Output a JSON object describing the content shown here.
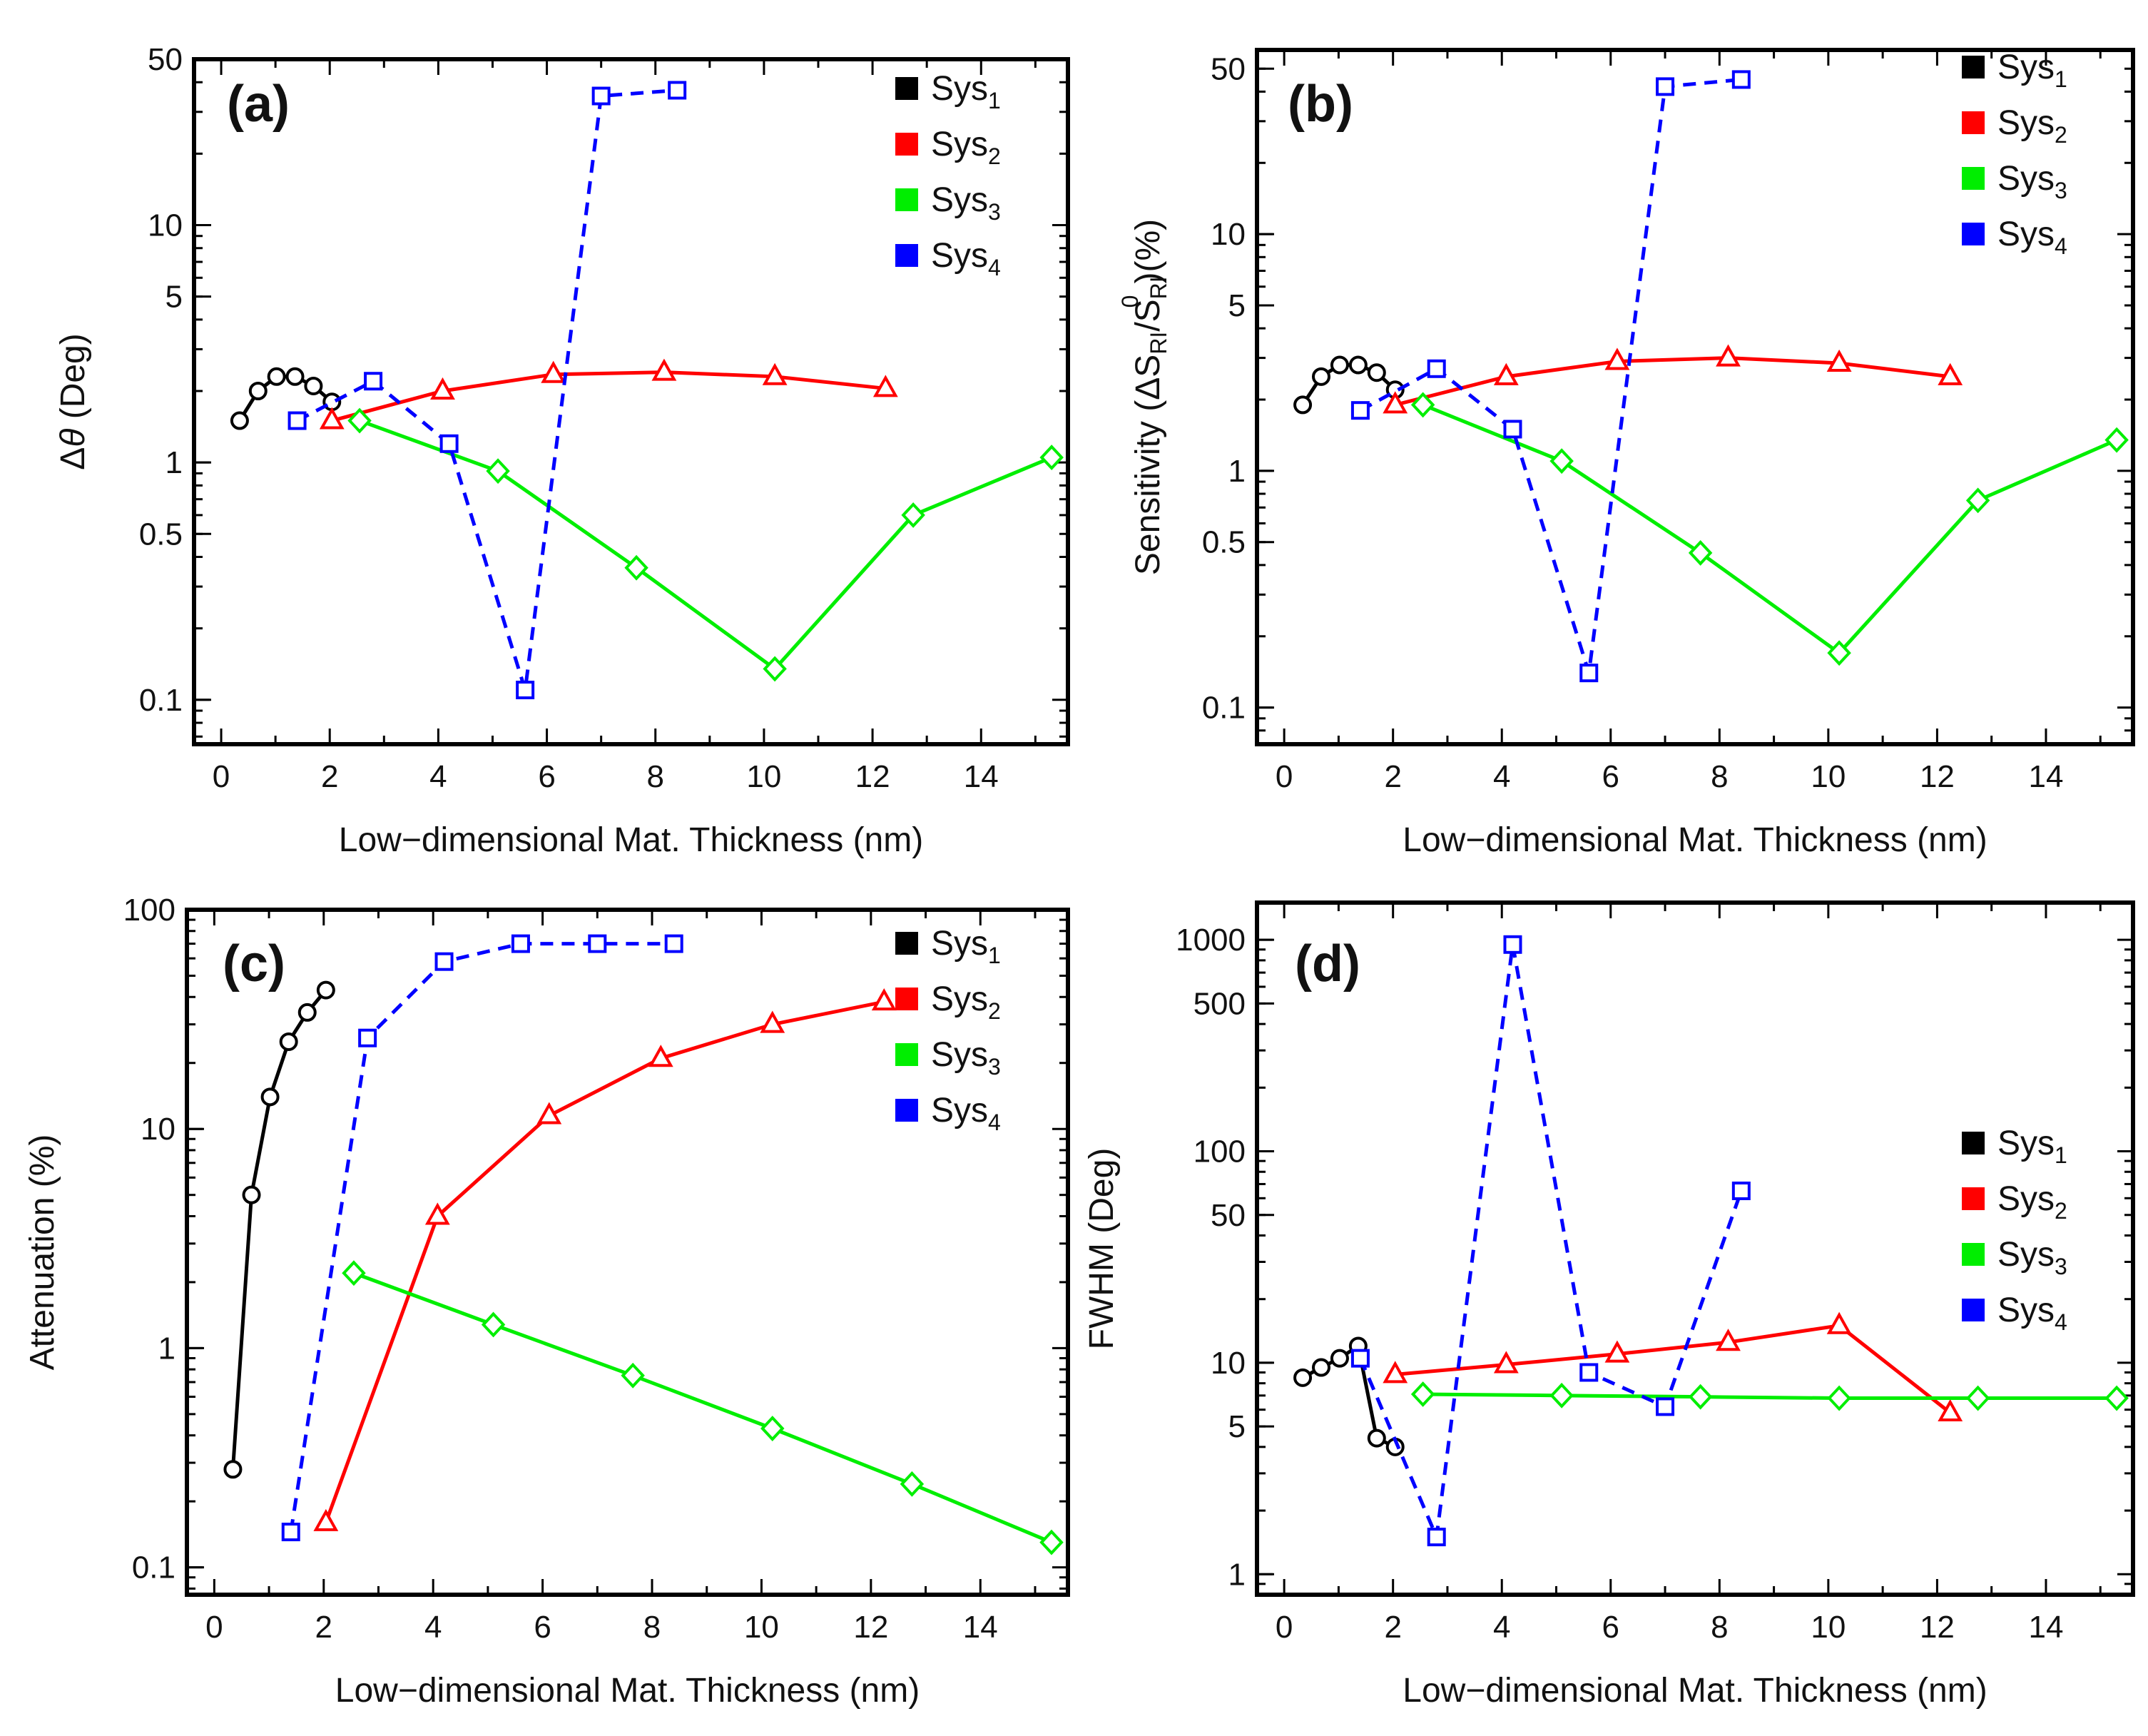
{
  "colors": {
    "sys1": "#000000",
    "sys2": "#ff0000",
    "sys3": "#00ee00",
    "sys4": "#0000ff"
  },
  "legend": [
    {
      "base": "Sys",
      "sub": "1",
      "color": "#000000"
    },
    {
      "base": "Sys",
      "sub": "2",
      "color": "#ff0000"
    },
    {
      "base": "Sys",
      "sub": "3",
      "color": "#00ee00"
    },
    {
      "base": "Sys",
      "sub": "4",
      "color": "#0000ff"
    }
  ],
  "chart_data": [
    {
      "type": "line",
      "panel_label": "(a)",
      "xlabel": "Low−dimensional Mat. Thickness (nm)",
      "ylabel_parts": [
        "Δ",
        "θ",
        " (Deg)"
      ],
      "yscale": "log",
      "xlim": [
        -0.5,
        15.6
      ],
      "ylim": [
        0.065,
        50
      ],
      "xticks": [
        "0",
        "2",
        "4",
        "6",
        "8",
        "10",
        "12",
        "14"
      ],
      "yticks": [
        0.1,
        0.5,
        1,
        5,
        10,
        50
      ],
      "ytick_labels": [
        "0.1",
        "0.5",
        "1",
        "5",
        "10",
        "50"
      ],
      "series": [
        {
          "name": "Sys1",
          "marker": "circle",
          "dash": false,
          "x": [
            0.34,
            0.68,
            1.02,
            1.36,
            1.7,
            2.04
          ],
          "y": [
            1.5,
            2.0,
            2.3,
            2.3,
            2.1,
            1.8
          ]
        },
        {
          "name": "Sys2",
          "marker": "triangle",
          "dash": false,
          "x": [
            2.04,
            4.08,
            6.12,
            8.16,
            10.2,
            12.24
          ],
          "y": [
            1.5,
            2.0,
            2.35,
            2.4,
            2.3,
            2.05
          ]
        },
        {
          "name": "Sys3",
          "marker": "diamond",
          "dash": false,
          "x": [
            2.55,
            5.1,
            7.65,
            10.2,
            12.75,
            15.3
          ],
          "y": [
            1.5,
            0.92,
            0.36,
            0.135,
            0.6,
            1.05
          ]
        },
        {
          "name": "Sys4",
          "marker": "square",
          "dash": true,
          "x": [
            1.4,
            2.8,
            4.2,
            5.6,
            7.0,
            8.4
          ],
          "y": [
            1.5,
            2.2,
            1.2,
            0.11,
            35,
            37
          ]
        }
      ]
    },
    {
      "type": "line",
      "panel_label": "(b)",
      "xlabel": "Low−dimensional Mat. Thickness (nm)",
      "ylabel_parts": [
        "Sensitivity (",
        "ΔS",
        "RI",
        "/S",
        "RI",
        "0",
        ")(%)"
      ],
      "yscale": "log",
      "xlim": [
        -0.5,
        15.6
      ],
      "ylim": [
        0.07,
        60
      ],
      "xticks": [
        "0",
        "2",
        "4",
        "6",
        "8",
        "10",
        "12",
        "14"
      ],
      "yticks": [
        0.1,
        0.5,
        1,
        5,
        10,
        50
      ],
      "ytick_labels": [
        "0.1",
        "0.5",
        "1",
        "5",
        "10",
        "50"
      ],
      "series": [
        {
          "name": "Sys1",
          "marker": "circle",
          "dash": false,
          "x": [
            0.34,
            0.68,
            1.02,
            1.36,
            1.7,
            2.04
          ],
          "y": [
            1.9,
            2.5,
            2.8,
            2.8,
            2.6,
            2.2
          ]
        },
        {
          "name": "Sys2",
          "marker": "triangle",
          "dash": false,
          "x": [
            2.04,
            4.08,
            6.12,
            8.16,
            10.2,
            12.24
          ],
          "y": [
            1.9,
            2.5,
            2.9,
            3.0,
            2.85,
            2.5
          ]
        },
        {
          "name": "Sys3",
          "marker": "diamond",
          "dash": false,
          "x": [
            2.55,
            5.1,
            7.65,
            10.2,
            12.75,
            15.3
          ],
          "y": [
            1.9,
            1.1,
            0.45,
            0.17,
            0.75,
            1.35
          ]
        },
        {
          "name": "Sys4",
          "marker": "square",
          "dash": true,
          "x": [
            1.4,
            2.8,
            4.2,
            5.6,
            7.0,
            8.4
          ],
          "y": [
            1.8,
            2.7,
            1.5,
            0.14,
            42,
            45
          ]
        }
      ]
    },
    {
      "type": "line",
      "panel_label": "(c)",
      "xlabel": "Low−dimensional Mat. Thickness (nm)",
      "ylabel_parts": [
        "Attenuation (%)"
      ],
      "yscale": "log",
      "xlim": [
        -0.5,
        15.6
      ],
      "ylim": [
        0.075,
        100
      ],
      "xticks": [
        "0",
        "2",
        "4",
        "6",
        "8",
        "10",
        "12",
        "14"
      ],
      "yticks": [
        0.1,
        1,
        10,
        100
      ],
      "ytick_labels": [
        "0.1",
        "1",
        "10",
        "100"
      ],
      "series": [
        {
          "name": "Sys1",
          "marker": "circle",
          "dash": false,
          "x": [
            0.34,
            0.68,
            1.02,
            1.36,
            1.7,
            2.04
          ],
          "y": [
            0.28,
            5.0,
            14,
            25,
            34,
            43
          ]
        },
        {
          "name": "Sys2",
          "marker": "triangle",
          "dash": false,
          "x": [
            2.04,
            4.08,
            6.12,
            8.16,
            10.2,
            12.24
          ],
          "y": [
            0.16,
            4.0,
            11.5,
            21,
            30,
            38
          ]
        },
        {
          "name": "Sys3",
          "marker": "diamond",
          "dash": false,
          "x": [
            2.55,
            5.1,
            7.65,
            10.2,
            12.75,
            15.3
          ],
          "y": [
            2.2,
            1.28,
            0.75,
            0.43,
            0.24,
            0.13
          ]
        },
        {
          "name": "Sys4",
          "marker": "square",
          "dash": true,
          "x": [
            1.4,
            2.8,
            4.2,
            5.6,
            7.0,
            8.4
          ],
          "y": [
            0.145,
            26,
            58,
            70,
            70,
            70
          ]
        }
      ]
    },
    {
      "type": "line",
      "panel_label": "(d)",
      "xlabel": "Low−dimensional Mat. Thickness (nm)",
      "ylabel_parts": [
        "FWHM (Deg)"
      ],
      "yscale": "log",
      "xlim": [
        -0.5,
        15.6
      ],
      "ylim": [
        0.8,
        1500
      ],
      "xticks": [
        "0",
        "2",
        "4",
        "6",
        "8",
        "10",
        "12",
        "14"
      ],
      "yticks": [
        1,
        5,
        10,
        50,
        100,
        500,
        1000
      ],
      "ytick_labels": [
        "1",
        "5",
        "10",
        "50",
        "100",
        "500",
        "1000"
      ],
      "series": [
        {
          "name": "Sys1",
          "marker": "circle",
          "dash": false,
          "x": [
            0.34,
            0.68,
            1.02,
            1.36,
            1.7,
            2.04
          ],
          "y": [
            8.5,
            9.5,
            10.5,
            12,
            4.4,
            4.0
          ]
        },
        {
          "name": "Sys2",
          "marker": "triangle",
          "dash": false,
          "x": [
            2.04,
            4.08,
            6.12,
            8.16,
            10.2,
            12.24
          ],
          "y": [
            8.8,
            9.8,
            11,
            12.5,
            15,
            5.8
          ]
        },
        {
          "name": "Sys3",
          "marker": "diamond",
          "dash": false,
          "x": [
            2.55,
            5.1,
            7.65,
            10.2,
            12.75,
            15.3
          ],
          "y": [
            7.1,
            7.0,
            6.9,
            6.8,
            6.8,
            6.8
          ]
        },
        {
          "name": "Sys4",
          "marker": "square",
          "dash": true,
          "x": [
            1.4,
            2.8,
            4.2,
            5.6,
            7.0,
            8.4
          ],
          "y": [
            10.5,
            1.5,
            950,
            9.0,
            6.2,
            65
          ]
        }
      ]
    }
  ]
}
